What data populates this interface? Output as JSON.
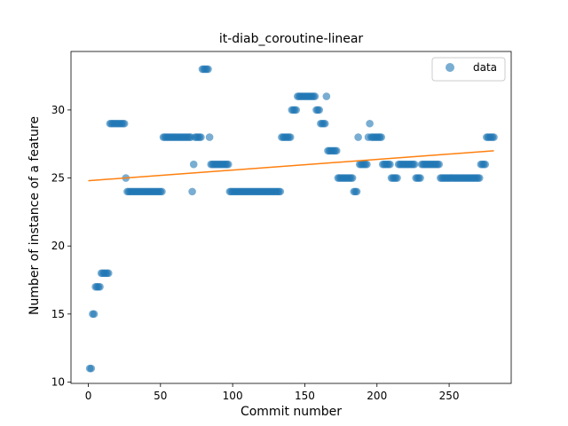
{
  "chart_data": {
    "type": "scatter",
    "title": "it-diab_coroutine-linear",
    "xlabel": "Commit number",
    "ylabel": "Number of instance of a feature",
    "xlim": [
      -12,
      293
    ],
    "ylim": [
      9.9,
      34.3
    ],
    "xticks": [
      0,
      50,
      100,
      150,
      200,
      250
    ],
    "yticks": [
      10,
      15,
      20,
      25,
      30
    ],
    "grid": false,
    "legend": {
      "position": "top-right",
      "entries": [
        "data"
      ]
    },
    "colors": {
      "points": "#1f77b4",
      "trend": "#ff7f0e"
    },
    "series": [
      {
        "name": "data",
        "kind": "points",
        "segments": [
          {
            "x_start": 1,
            "x_end": 2,
            "y": 11
          },
          {
            "x_start": 3,
            "x_end": 4,
            "y": 15
          },
          {
            "x_start": 5,
            "x_end": 8,
            "y": 17
          },
          {
            "x_start": 9,
            "x_end": 14,
            "y": 18
          },
          {
            "x_start": 15,
            "x_end": 25,
            "y": 29
          },
          {
            "x_start": 26,
            "x_end": 26,
            "y": 25
          },
          {
            "x_start": 27,
            "x_end": 51,
            "y": 24
          },
          {
            "x_start": 52,
            "x_end": 71,
            "y": 28
          },
          {
            "x_start": 72,
            "x_end": 72,
            "y": 24
          },
          {
            "x_start": 73,
            "x_end": 73,
            "y": 26
          },
          {
            "x_start": 74,
            "x_end": 78,
            "y": 28
          },
          {
            "x_start": 79,
            "x_end": 83,
            "y": 33
          },
          {
            "x_start": 84,
            "x_end": 84,
            "y": 28
          },
          {
            "x_start": 85,
            "x_end": 97,
            "y": 26
          },
          {
            "x_start": 98,
            "x_end": 133,
            "y": 24
          },
          {
            "x_start": 134,
            "x_end": 140,
            "y": 28
          },
          {
            "x_start": 141,
            "x_end": 144,
            "y": 30
          },
          {
            "x_start": 145,
            "x_end": 157,
            "y": 31
          },
          {
            "x_start": 158,
            "x_end": 160,
            "y": 30
          },
          {
            "x_start": 161,
            "x_end": 164,
            "y": 29
          },
          {
            "x_start": 165,
            "x_end": 165,
            "y": 31
          },
          {
            "x_start": 166,
            "x_end": 172,
            "y": 27
          },
          {
            "x_start": 173,
            "x_end": 183,
            "y": 25
          },
          {
            "x_start": 184,
            "x_end": 186,
            "y": 24
          },
          {
            "x_start": 187,
            "x_end": 187,
            "y": 28
          },
          {
            "x_start": 188,
            "x_end": 193,
            "y": 26
          },
          {
            "x_start": 194,
            "x_end": 194,
            "y": 28
          },
          {
            "x_start": 195,
            "x_end": 195,
            "y": 29
          },
          {
            "x_start": 196,
            "x_end": 203,
            "y": 28
          },
          {
            "x_start": 204,
            "x_end": 209,
            "y": 26
          },
          {
            "x_start": 210,
            "x_end": 214,
            "y": 25
          },
          {
            "x_start": 215,
            "x_end": 226,
            "y": 26
          },
          {
            "x_start": 227,
            "x_end": 230,
            "y": 25
          },
          {
            "x_start": 231,
            "x_end": 243,
            "y": 26
          },
          {
            "x_start": 244,
            "x_end": 271,
            "y": 25
          },
          {
            "x_start": 272,
            "x_end": 275,
            "y": 26
          },
          {
            "x_start": 276,
            "x_end": 281,
            "y": 28
          }
        ]
      },
      {
        "kind": "trend",
        "x": [
          0,
          281
        ],
        "y": [
          24.8,
          27.0
        ]
      }
    ]
  }
}
